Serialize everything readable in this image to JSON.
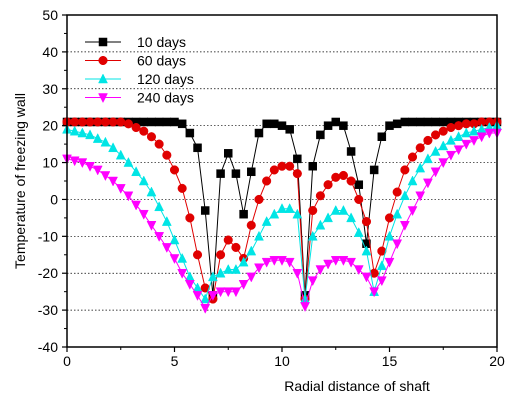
{
  "chart_data": {
    "type": "line",
    "title": "",
    "xlabel": "Radial distance of shaft",
    "ylabel": "Temperature of  freezing wall",
    "xlim": [
      0,
      20
    ],
    "ylim": [
      -40,
      50
    ],
    "xticks": [
      0,
      5,
      10,
      15,
      20
    ],
    "yticks": [
      -40,
      -30,
      -20,
      -10,
      0,
      10,
      20,
      30,
      40,
      50
    ],
    "grid": "horizontal dotted",
    "legend_position": "top-left",
    "series": [
      {
        "name": "10 days",
        "color": "#000000",
        "marker": "square",
        "x": [
          0,
          0.357,
          0.714,
          1.071,
          1.429,
          1.786,
          2.143,
          2.5,
          2.857,
          3.214,
          3.571,
          3.929,
          4.286,
          4.643,
          5,
          5.357,
          5.714,
          6.071,
          6.429,
          6.786,
          7.143,
          7.5,
          7.857,
          8.214,
          8.571,
          8.929,
          9.286,
          9.643,
          10,
          10.357,
          10.714,
          11.071,
          11.429,
          11.786,
          12.143,
          12.5,
          12.857,
          13.214,
          13.571,
          13.929,
          14.286,
          14.643,
          15,
          15.357,
          15.714,
          16.071,
          16.429,
          16.786,
          17.143,
          17.5,
          17.857,
          18.214,
          18.571,
          18.929,
          19.286,
          19.643,
          20
        ],
        "y": [
          21,
          21,
          21,
          21,
          21,
          21,
          21,
          21,
          21,
          21,
          21,
          21,
          21,
          21,
          21,
          20.5,
          18,
          14,
          -3,
          -26,
          7,
          12.5,
          7,
          -4,
          7.5,
          18,
          20.5,
          20.5,
          20,
          19,
          11,
          -26,
          9,
          17.5,
          20,
          21,
          20,
          13,
          4,
          -12,
          8,
          17,
          20,
          20.5,
          21,
          21,
          21,
          21,
          21,
          21,
          21,
          21,
          21,
          21,
          21,
          21,
          21
        ]
      },
      {
        "name": "60 days",
        "color": "#e00000",
        "marker": "circle",
        "x": [
          0,
          0.357,
          0.714,
          1.071,
          1.429,
          1.786,
          2.143,
          2.5,
          2.857,
          3.214,
          3.571,
          3.929,
          4.286,
          4.643,
          5,
          5.357,
          5.714,
          6.071,
          6.429,
          6.786,
          7.143,
          7.5,
          7.857,
          8.214,
          8.571,
          8.929,
          9.286,
          9.643,
          10,
          10.357,
          10.714,
          11.071,
          11.429,
          11.786,
          12.143,
          12.5,
          12.857,
          13.214,
          13.571,
          13.929,
          14.286,
          14.643,
          15,
          15.357,
          15.714,
          16.071,
          16.429,
          16.786,
          17.143,
          17.5,
          17.857,
          18.214,
          18.571,
          18.929,
          19.286,
          19.643,
          20
        ],
        "y": [
          21,
          21,
          21,
          21,
          21,
          21,
          21,
          21,
          20.5,
          19.5,
          18.5,
          17,
          15,
          12,
          8,
          3,
          -5,
          -15,
          -24,
          -27,
          -15,
          -11,
          -13,
          -16,
          -7,
          0,
          5,
          8,
          9,
          9,
          7,
          -27,
          -3,
          1,
          4,
          6,
          6.5,
          5,
          0,
          -6,
          -20,
          -14,
          -5,
          2,
          8,
          11.5,
          14,
          16,
          17.5,
          18.5,
          19.5,
          20,
          20.5,
          20.5,
          21,
          21,
          21
        ]
      },
      {
        "name": "120 days",
        "color": "#00e5e5",
        "marker": "triangle-up",
        "x": [
          0,
          0.357,
          0.714,
          1.071,
          1.429,
          1.786,
          2.143,
          2.5,
          2.857,
          3.214,
          3.571,
          3.929,
          4.286,
          4.643,
          5,
          5.357,
          5.714,
          6.071,
          6.429,
          6.786,
          7.143,
          7.5,
          7.857,
          8.214,
          8.571,
          8.929,
          9.286,
          9.643,
          10,
          10.357,
          10.714,
          11.071,
          11.429,
          11.786,
          12.143,
          12.5,
          12.857,
          13.214,
          13.571,
          13.929,
          14.286,
          14.643,
          15,
          15.357,
          15.714,
          16.071,
          16.429,
          16.786,
          17.143,
          17.5,
          17.857,
          18.214,
          18.571,
          18.929,
          19.286,
          19.643,
          20
        ],
        "y": [
          19,
          18.5,
          18,
          17.5,
          16.5,
          15.5,
          14,
          12,
          10,
          7.5,
          5,
          2,
          -2,
          -6,
          -11,
          -16,
          -21,
          -24,
          -27,
          -21,
          -20,
          -19,
          -19,
          -17,
          -14,
          -10,
          -6,
          -4,
          -2.5,
          -2.5,
          -4,
          -27,
          -10,
          -7,
          -5,
          -3,
          -3,
          -5,
          -9,
          -14,
          -25,
          -18,
          -10,
          -4,
          1,
          5,
          8.5,
          11,
          13,
          14.5,
          16,
          17,
          18,
          18.5,
          19,
          19.5,
          20
        ]
      },
      {
        "name": "240 days",
        "color": "#ff00ff",
        "marker": "triangle-down",
        "x": [
          0,
          0.357,
          0.714,
          1.071,
          1.429,
          1.786,
          2.143,
          2.5,
          2.857,
          3.214,
          3.571,
          3.929,
          4.286,
          4.643,
          5,
          5.357,
          5.714,
          6.071,
          6.429,
          6.786,
          7.143,
          7.5,
          7.857,
          8.214,
          8.571,
          8.929,
          9.286,
          9.643,
          10,
          10.357,
          10.714,
          11.071,
          11.429,
          11.786,
          12.143,
          12.5,
          12.857,
          13.214,
          13.571,
          13.929,
          14.286,
          14.643,
          15,
          15.357,
          15.714,
          16.071,
          16.429,
          16.786,
          17.143,
          17.5,
          17.857,
          18.214,
          18.571,
          18.929,
          19.286,
          19.643,
          20
        ],
        "y": [
          11,
          10.5,
          10,
          9,
          8,
          6.5,
          5,
          3,
          1,
          -1.5,
          -4,
          -7,
          -10,
          -13,
          -16,
          -20,
          -23,
          -26,
          -29.5,
          -26,
          -25,
          -25,
          -25,
          -23,
          -21,
          -18.5,
          -17,
          -16.5,
          -16.5,
          -17,
          -20,
          -29,
          -22,
          -19,
          -17.5,
          -16.5,
          -16.5,
          -17,
          -19,
          -21,
          -25,
          -22,
          -17,
          -12,
          -7,
          -3,
          1,
          4.5,
          7.5,
          10,
          12,
          13.5,
          15,
          16,
          17,
          18,
          18
        ]
      }
    ]
  }
}
